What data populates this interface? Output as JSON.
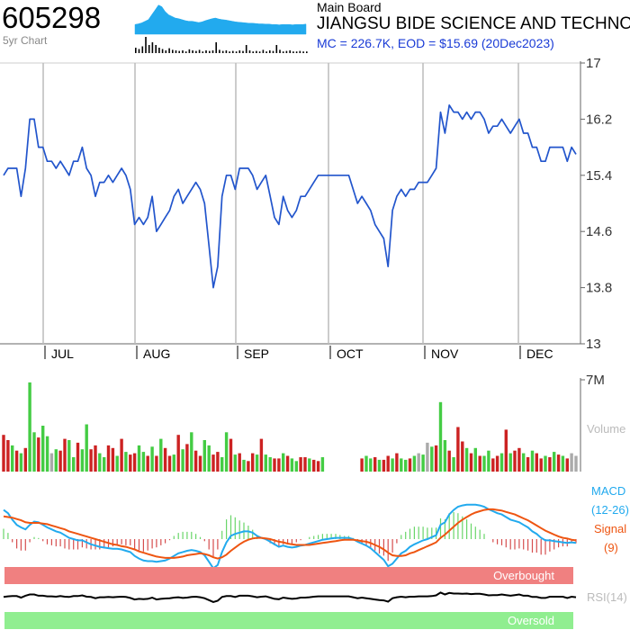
{
  "header": {
    "ticker": "605298",
    "period_label": "5yr Chart",
    "board": "Main Board",
    "company": "JIANGSU BIDE SCIENCE AND TECHNO",
    "mc_eod": "MC = 226.7K, EOD = $15.69 (20Dec2023)"
  },
  "colors": {
    "price_line": "#2255cc",
    "up_bar": "#44cc44",
    "down_bar": "#cc2222",
    "neutral_bar": "#aaaaaa",
    "macd_line": "#22aaee",
    "signal_line": "#ee5511",
    "overbought_band": "#f08080",
    "oversold_band": "#90ee90",
    "rsi_line": "#000000",
    "spark_fill": "#22aaee"
  },
  "chart_data": {
    "type": "line",
    "price": {
      "yticks": [
        "17",
        "16.2",
        "15.4",
        "14.6",
        "13.8",
        "13"
      ],
      "ylim": [
        13,
        17
      ],
      "months": [
        "JUL",
        "AUG",
        "SEP",
        "OCT",
        "NOV",
        "DEC"
      ],
      "values": [
        15.4,
        15.5,
        15.5,
        15.5,
        15.1,
        15.5,
        16.2,
        16.2,
        15.8,
        15.8,
        15.6,
        15.6,
        15.5,
        15.6,
        15.5,
        15.4,
        15.6,
        15.6,
        15.8,
        15.5,
        15.4,
        15.1,
        15.3,
        15.3,
        15.4,
        15.3,
        15.4,
        15.5,
        15.4,
        15.2,
        14.7,
        14.8,
        14.7,
        14.8,
        15.1,
        14.6,
        14.7,
        14.8,
        14.9,
        15.1,
        15.2,
        15.0,
        15.1,
        15.2,
        15.3,
        15.2,
        15.0,
        14.4,
        13.8,
        14.1,
        15.1,
        15.4,
        15.4,
        15.2,
        15.5,
        15.5,
        15.5,
        15.4,
        15.2,
        15.3,
        15.4,
        15.1,
        14.8,
        14.7,
        15.1,
        14.9,
        14.8,
        14.9,
        15.1,
        15.1,
        15.2,
        15.3,
        15.4,
        15.4,
        15.4,
        15.4,
        15.4,
        15.4,
        15.4,
        15.4,
        15.2,
        15.0,
        15.1,
        15.0,
        14.9,
        14.7,
        14.6,
        14.5,
        14.1,
        14.9,
        15.1,
        15.2,
        15.1,
        15.2,
        15.2,
        15.3,
        15.3,
        15.3,
        15.4,
        15.5,
        16.3,
        16.0,
        16.4,
        16.3,
        16.3,
        16.2,
        16.3,
        16.2,
        16.3,
        16.3,
        16.2,
        16.0,
        16.1,
        16.1,
        16.2,
        16.1,
        16.0,
        16.1,
        16.2,
        16.0,
        16.0,
        15.8,
        15.8,
        15.6,
        15.6,
        15.8,
        15.8,
        15.8,
        15.8,
        15.6,
        15.8,
        15.7
      ],
      "last_close": 15.69
    },
    "volume": {
      "label": "Volume",
      "max_label": "7M",
      "ylim": [
        0,
        7
      ],
      "values": [
        2.8,
        2.4,
        2.0,
        1.6,
        1.4,
        1.8,
        6.8,
        3.0,
        2.6,
        3.5,
        2.7,
        1.4,
        1.7,
        1.6,
        2.5,
        2.4,
        1.1,
        2.2,
        1.7,
        3.6,
        1.7,
        2.0,
        1.4,
        1.1,
        2.0,
        1.8,
        1.2,
        2.5,
        1.5,
        1.3,
        1.4,
        2.0,
        1.5,
        1.2,
        1.9,
        1.2,
        2.5,
        1.8,
        1.2,
        1.3,
        2.8,
        1.7,
        2.1,
        3.0,
        1.6,
        1.2,
        2.4,
        2.0,
        1.3,
        1.5,
        1.1,
        3.0,
        2.5,
        1.3,
        1.4,
        0.9,
        0.8,
        1.4,
        1.3,
        2.5,
        1.3,
        1.1,
        1.0,
        1.0,
        1.4,
        1.2,
        1.0,
        0.8,
        1.1,
        1.1,
        1.0,
        0.9,
        0.8,
        1.1,
        0.0,
        0.0,
        0.0,
        0.0,
        0.0,
        0.0,
        0.0,
        0.0,
        1.0,
        1.2,
        1.0,
        1.1,
        0.9,
        0.9,
        1.2,
        1.0,
        1.4,
        1.0,
        0.9,
        1.0,
        1.2,
        1.4,
        1.3,
        2.2,
        1.9,
        2.0,
        5.3,
        2.4,
        1.6,
        1.1,
        3.4,
        2.3,
        1.8,
        1.4,
        1.8,
        1.2,
        1.2,
        1.6,
        1.0,
        1.2,
        1.4,
        3.2,
        1.4,
        1.6,
        1.8,
        1.4,
        1.1,
        1.6,
        1.4,
        1.0,
        1.2,
        1.1,
        1.5,
        1.3,
        1.2,
        1.0,
        1.4,
        1.2
      ],
      "colors": [
        "d",
        "d",
        "u",
        "d",
        "u",
        "d",
        "u",
        "u",
        "d",
        "u",
        "u",
        "n",
        "u",
        "d",
        "d",
        "u",
        "u",
        "d",
        "u",
        "u",
        "d",
        "d",
        "u",
        "u",
        "d",
        "d",
        "u",
        "d",
        "u",
        "d",
        "d",
        "u",
        "u",
        "d",
        "u",
        "d",
        "u",
        "d",
        "d",
        "u",
        "d",
        "u",
        "d",
        "u",
        "d",
        "d",
        "u",
        "u",
        "d",
        "d",
        "u",
        "u",
        "d",
        "u",
        "d",
        "u",
        "d",
        "d",
        "u",
        "d",
        "u",
        "u",
        "d",
        "d",
        "u",
        "d",
        "u",
        "u",
        "d",
        "d",
        "u",
        "d",
        "d",
        "u",
        "d",
        "d",
        "d",
        "d",
        "d",
        "d",
        "d",
        "d",
        "d",
        "u",
        "u",
        "d",
        "u",
        "d",
        "d",
        "u",
        "d",
        "u",
        "u",
        "d",
        "u",
        "n",
        "u",
        "n",
        "u",
        "d",
        "u",
        "u",
        "d",
        "u",
        "d",
        "d",
        "u",
        "d",
        "u",
        "d",
        "u",
        "u",
        "d",
        "d",
        "u",
        "d",
        "u",
        "d",
        "d",
        "u",
        "d",
        "u",
        "d",
        "d",
        "u",
        "d",
        "u",
        "d",
        "u",
        "d"
      ]
    },
    "macd": {
      "labels": [
        "MACD",
        "(12-26)"
      ],
      "signal_labels": [
        "Signal",
        "(9)"
      ],
      "ylim": [
        -0.6,
        0.6
      ],
      "macd": [
        0.45,
        0.4,
        0.3,
        0.22,
        0.18,
        0.15,
        0.22,
        0.27,
        0.26,
        0.22,
        0.18,
        0.15,
        0.12,
        0.1,
        0.06,
        0.02,
        0.0,
        -0.02,
        -0.02,
        -0.05,
        -0.08,
        -0.1,
        -0.12,
        -0.13,
        -0.14,
        -0.15,
        -0.15,
        -0.16,
        -0.18,
        -0.2,
        -0.26,
        -0.3,
        -0.33,
        -0.34,
        -0.34,
        -0.35,
        -0.34,
        -0.33,
        -0.3,
        -0.26,
        -0.22,
        -0.2,
        -0.18,
        -0.17,
        -0.18,
        -0.2,
        -0.25,
        -0.35,
        -0.45,
        -0.4,
        -0.2,
        -0.05,
        0.05,
        0.08,
        0.1,
        0.12,
        0.12,
        0.1,
        0.05,
        0.02,
        0.0,
        -0.04,
        -0.08,
        -0.12,
        -0.1,
        -0.12,
        -0.13,
        -0.12,
        -0.1,
        -0.09,
        -0.07,
        -0.05,
        -0.03,
        -0.01,
        0.0,
        0.01,
        0.02,
        0.02,
        0.02,
        0.02,
        0.0,
        -0.04,
        -0.07,
        -0.1,
        -0.14,
        -0.2,
        -0.26,
        -0.32,
        -0.42,
        -0.38,
        -0.3,
        -0.22,
        -0.18,
        -0.12,
        -0.08,
        -0.05,
        -0.02,
        0.0,
        0.03,
        0.06,
        0.22,
        0.26,
        0.38,
        0.45,
        0.5,
        0.52,
        0.53,
        0.53,
        0.53,
        0.52,
        0.5,
        0.46,
        0.43,
        0.4,
        0.38,
        0.34,
        0.3,
        0.28,
        0.26,
        0.22,
        0.18,
        0.12,
        0.08,
        0.02,
        -0.02,
        -0.02,
        -0.03,
        -0.04,
        -0.05,
        -0.06,
        -0.05,
        -0.06
      ],
      "signal": [
        0.35,
        0.34,
        0.33,
        0.31,
        0.29,
        0.26,
        0.25,
        0.25,
        0.25,
        0.24,
        0.23,
        0.21,
        0.19,
        0.17,
        0.15,
        0.12,
        0.1,
        0.08,
        0.06,
        0.04,
        0.02,
        0.0,
        -0.02,
        -0.04,
        -0.06,
        -0.08,
        -0.09,
        -0.11,
        -0.12,
        -0.14,
        -0.16,
        -0.19,
        -0.21,
        -0.23,
        -0.25,
        -0.27,
        -0.28,
        -0.29,
        -0.29,
        -0.29,
        -0.28,
        -0.27,
        -0.25,
        -0.24,
        -0.23,
        -0.22,
        -0.23,
        -0.25,
        -0.28,
        -0.3,
        -0.28,
        -0.24,
        -0.18,
        -0.13,
        -0.08,
        -0.04,
        -0.01,
        0.01,
        0.02,
        0.02,
        0.01,
        0.0,
        -0.02,
        -0.04,
        -0.05,
        -0.07,
        -0.08,
        -0.09,
        -0.09,
        -0.09,
        -0.09,
        -0.08,
        -0.07,
        -0.06,
        -0.05,
        -0.04,
        -0.03,
        -0.02,
        -0.01,
        -0.01,
        -0.01,
        -0.02,
        -0.03,
        -0.04,
        -0.06,
        -0.09,
        -0.12,
        -0.16,
        -0.21,
        -0.25,
        -0.26,
        -0.26,
        -0.25,
        -0.22,
        -0.2,
        -0.17,
        -0.14,
        -0.11,
        -0.08,
        -0.05,
        0.02,
        0.07,
        0.13,
        0.19,
        0.25,
        0.3,
        0.34,
        0.38,
        0.41,
        0.43,
        0.45,
        0.46,
        0.46,
        0.45,
        0.44,
        0.42,
        0.4,
        0.38,
        0.35,
        0.32,
        0.29,
        0.25,
        0.21,
        0.17,
        0.13,
        0.1,
        0.07,
        0.04,
        0.02,
        0.01,
        -0.01,
        -0.02
      ]
    },
    "rsi": {
      "label": "RSI(14)",
      "overbought_label": "Overbought",
      "oversold_label": "Oversold",
      "ylim": [
        0,
        100
      ],
      "values": [
        52,
        54,
        55,
        55,
        50,
        56,
        60,
        60,
        56,
        56,
        54,
        54,
        53,
        55,
        53,
        52,
        55,
        55,
        57,
        53,
        52,
        48,
        51,
        51,
        52,
        51,
        52,
        53,
        52,
        49,
        44,
        46,
        45,
        46,
        50,
        44,
        46,
        47,
        48,
        50,
        51,
        49,
        50,
        52,
        53,
        51,
        48,
        42,
        36,
        40,
        52,
        55,
        55,
        52,
        56,
        56,
        56,
        54,
        51,
        53,
        54,
        50,
        46,
        45,
        50,
        48,
        46,
        47,
        50,
        50,
        51,
        53,
        54,
        54,
        54,
        54,
        54,
        54,
        54,
        54,
        51,
        48,
        50,
        48,
        46,
        44,
        42,
        41,
        37,
        48,
        51,
        53,
        51,
        53,
        53,
        54,
        54,
        54,
        55,
        57,
        66,
        60,
        65,
        63,
        63,
        62,
        63,
        61,
        62,
        62,
        60,
        57,
        58,
        58,
        60,
        58,
        56,
        58,
        60,
        56,
        56,
        52,
        52,
        49,
        49,
        53,
        53,
        53,
        53,
        49,
        53,
        51
      ]
    },
    "sparkline": {
      "price": [
        30,
        32,
        35,
        40,
        45,
        60,
        75,
        90,
        85,
        70,
        60,
        55,
        50,
        48,
        45,
        42,
        40,
        40,
        38,
        36,
        38,
        42,
        45,
        48,
        50,
        47,
        45,
        44,
        42,
        40,
        38,
        37,
        36,
        35,
        34,
        34,
        33,
        32,
        32,
        31,
        31,
        30,
        30,
        29,
        30,
        30,
        30,
        29,
        30,
        30,
        30,
        31
      ],
      "volume": [
        20,
        15,
        25,
        60,
        30,
        40,
        30,
        20,
        15,
        10,
        18,
        12,
        10,
        8,
        10,
        6,
        14,
        10,
        8,
        12,
        6,
        10,
        8,
        10,
        40,
        12,
        8,
        10,
        6,
        8,
        6,
        10,
        8,
        30,
        10,
        6,
        8,
        6,
        12,
        6,
        10,
        8,
        30,
        12,
        6,
        8,
        10,
        6,
        6,
        8,
        6,
        6
      ]
    }
  }
}
